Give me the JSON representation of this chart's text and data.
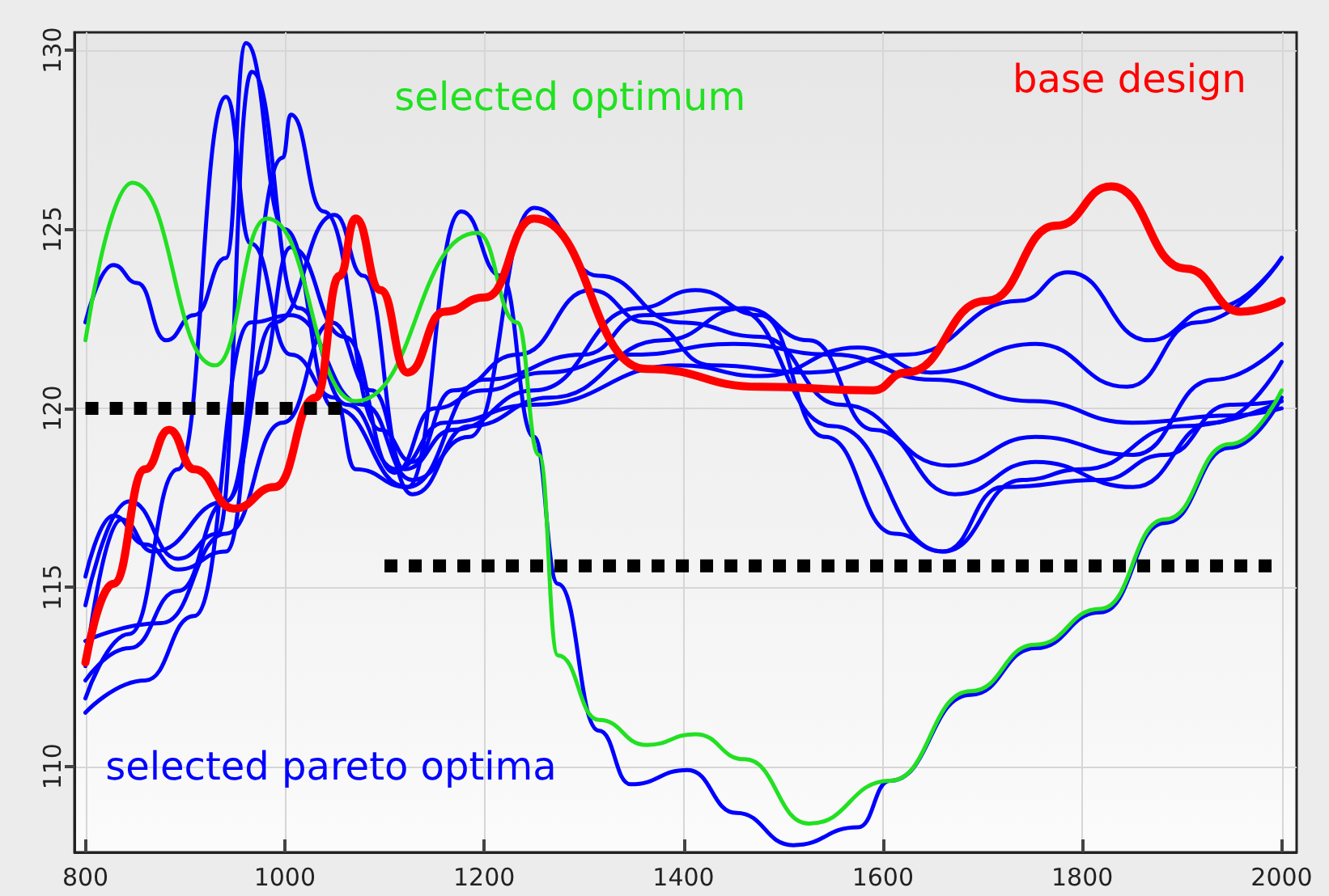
{
  "chart_data": {
    "type": "line",
    "xlim": [
      789,
      2015
    ],
    "ylim": [
      107.6,
      130.5
    ],
    "xticks": [
      800,
      1000,
      1200,
      1400,
      1600,
      1800,
      2000
    ],
    "yticks": [
      110,
      115,
      120,
      125,
      130
    ],
    "grid": true,
    "legend": false,
    "marker": "none",
    "line_style": "solid",
    "series": [
      {
        "color": "#0000ff",
        "x": [
          800,
          844,
          893,
          941,
          966,
          1006,
          1050,
          1071,
          1123,
          1177,
          1217,
          1250,
          1274,
          1315,
          1347,
          1404,
          1453,
          1510,
          1575,
          1607,
          1688,
          1753,
          1818,
          1883,
          1948,
          2000
        ],
        "values": [
          111.9,
          113.7,
          118.3,
          128.7,
          124.6,
          121.5,
          120.3,
          118.3,
          117.8,
          125.5,
          123.7,
          119.2,
          115.1,
          111.0,
          109.5,
          109.9,
          108.7,
          107.8,
          108.3,
          109.6,
          112.0,
          113.3,
          114.3,
          116.8,
          118.9,
          120.3
        ]
      },
      {
        "color": "#0000ff",
        "x": [
          800,
          828,
          852,
          881,
          909,
          941,
          961,
          1000,
          1050,
          1123,
          1200,
          1300,
          1360,
          1450,
          1550,
          1660,
          1740,
          1800,
          1900,
          2000
        ],
        "values": [
          122.4,
          124.0,
          123.5,
          121.9,
          122.6,
          124.2,
          130.2,
          125.0,
          120.0,
          117.8,
          120.8,
          121.5,
          122.6,
          122.8,
          119.5,
          116.0,
          118.0,
          118.3,
          119.5,
          120.2
        ]
      },
      {
        "color": "#0000ff",
        "x": [
          800,
          844,
          893,
          933,
          967,
          1014,
          1063,
          1112,
          1160,
          1250,
          1396,
          1477,
          1575,
          1648,
          1753,
          1845,
          1915,
          2000
        ],
        "values": [
          114.5,
          117.4,
          115.8,
          116.5,
          129.4,
          122.8,
          120.1,
          118.3,
          119.6,
          120.1,
          121.2,
          120.9,
          121.7,
          121.0,
          121.8,
          120.6,
          122.4,
          124.2
        ]
      },
      {
        "color": "#0000ff",
        "x": [
          800,
          836,
          868,
          941,
          998,
          1006,
          1039,
          1096,
          1128,
          1169,
          1234,
          1307,
          1363,
          1428,
          1526,
          1623,
          1737,
          1786,
          1867,
          1932,
          2000
        ],
        "values": [
          112.8,
          116.9,
          116.0,
          117.4,
          127.0,
          128.2,
          125.5,
          119.4,
          118.5,
          120.5,
          121.5,
          123.3,
          122.4,
          121.2,
          121.0,
          121.5,
          123.0,
          123.8,
          121.9,
          122.8,
          124.2
        ]
      },
      {
        "color": "#0000ff",
        "x": [
          800,
          844,
          893,
          941,
          990,
          1050,
          1079,
          1120,
          1169,
          1250,
          1355,
          1412,
          1477,
          1542,
          1612,
          1660,
          1720,
          1818,
          1883,
          1948,
          2000
        ],
        "values": [
          112.4,
          113.3,
          114.9,
          117.4,
          122.4,
          125.4,
          123.7,
          118.3,
          119.4,
          120.5,
          122.8,
          123.3,
          122.6,
          119.2,
          116.5,
          116.0,
          117.8,
          118.0,
          118.7,
          120.1,
          120.2
        ]
      },
      {
        "color": "#0000ff",
        "x": [
          800,
          860,
          909,
          966,
          1006,
          1079,
          1128,
          1185,
          1250,
          1315,
          1396,
          1477,
          1558,
          1666,
          1753,
          1851,
          1932,
          2000
        ],
        "values": [
          111.5,
          112.4,
          114.2,
          122.4,
          122.6,
          120.1,
          118.0,
          119.2,
          125.6,
          123.7,
          122.4,
          122.0,
          120.1,
          118.4,
          119.2,
          118.7,
          120.8,
          121.8
        ]
      },
      {
        "color": "#0000ff",
        "x": [
          800,
          876,
          941,
          998,
          1047,
          1087,
          1128,
          1185,
          1266,
          1380,
          1461,
          1526,
          1591,
          1672,
          1753,
          1851,
          1932,
          2000
        ],
        "values": [
          113.5,
          114.0,
          116.5,
          119.6,
          122.4,
          120.5,
          117.6,
          119.5,
          120.3,
          121.9,
          122.8,
          121.9,
          119.4,
          117.6,
          118.5,
          117.8,
          119.6,
          121.3
        ]
      },
      {
        "name": "selected pareto optima",
        "color": "#0000ff",
        "x": [
          800,
          828,
          860,
          893,
          941,
          975,
          1006,
          1060,
          1110,
          1150,
          1200,
          1260,
          1350,
          1450,
          1550,
          1650,
          1750,
          1850,
          1950,
          2000
        ],
        "values": [
          115.3,
          117.0,
          116.2,
          115.5,
          116.0,
          121.0,
          124.5,
          122.0,
          118.2,
          120.0,
          120.5,
          121.0,
          121.5,
          121.8,
          121.5,
          120.8,
          120.2,
          119.6,
          119.8,
          120.0
        ]
      },
      {
        "name": "selected optimum",
        "color": "#22e022",
        "x": [
          800,
          847,
          930,
          982,
          1071,
          1193,
          1233,
          1255,
          1274,
          1315,
          1363,
          1412,
          1461,
          1526,
          1607,
          1688,
          1753,
          1818,
          1883,
          1948,
          2000
        ],
        "values": [
          121.9,
          126.3,
          121.2,
          125.3,
          120.2,
          124.9,
          122.4,
          118.7,
          113.1,
          111.3,
          110.6,
          110.9,
          110.2,
          108.4,
          109.6,
          112.1,
          113.4,
          114.4,
          116.9,
          119.0,
          120.5
        ]
      },
      {
        "name": "base design",
        "color": "#ff0000",
        "x": [
          800,
          828,
          860,
          884,
          909,
          949,
          990,
          1031,
          1055,
          1071,
          1096,
          1123,
          1160,
          1201,
          1250,
          1363,
          1477,
          1590,
          1623,
          1704,
          1774,
          1829,
          1904,
          1959,
          2000
        ],
        "values": [
          112.9,
          115.1,
          118.3,
          119.4,
          118.3,
          117.2,
          117.8,
          120.3,
          123.7,
          125.3,
          123.3,
          121.0,
          122.7,
          123.1,
          125.3,
          121.1,
          120.6,
          120.5,
          121.0,
          123.0,
          125.1,
          126.2,
          123.9,
          122.7,
          123.0
        ]
      },
      {
        "color": "#000000",
        "line_style": "dotted",
        "x": [
          800,
          1065
        ],
        "values": [
          120,
          120
        ]
      },
      {
        "color": "#000000",
        "line_style": "dotted",
        "x": [
          1100,
          2000
        ],
        "values": [
          115.6,
          115.6
        ]
      }
    ]
  }
}
